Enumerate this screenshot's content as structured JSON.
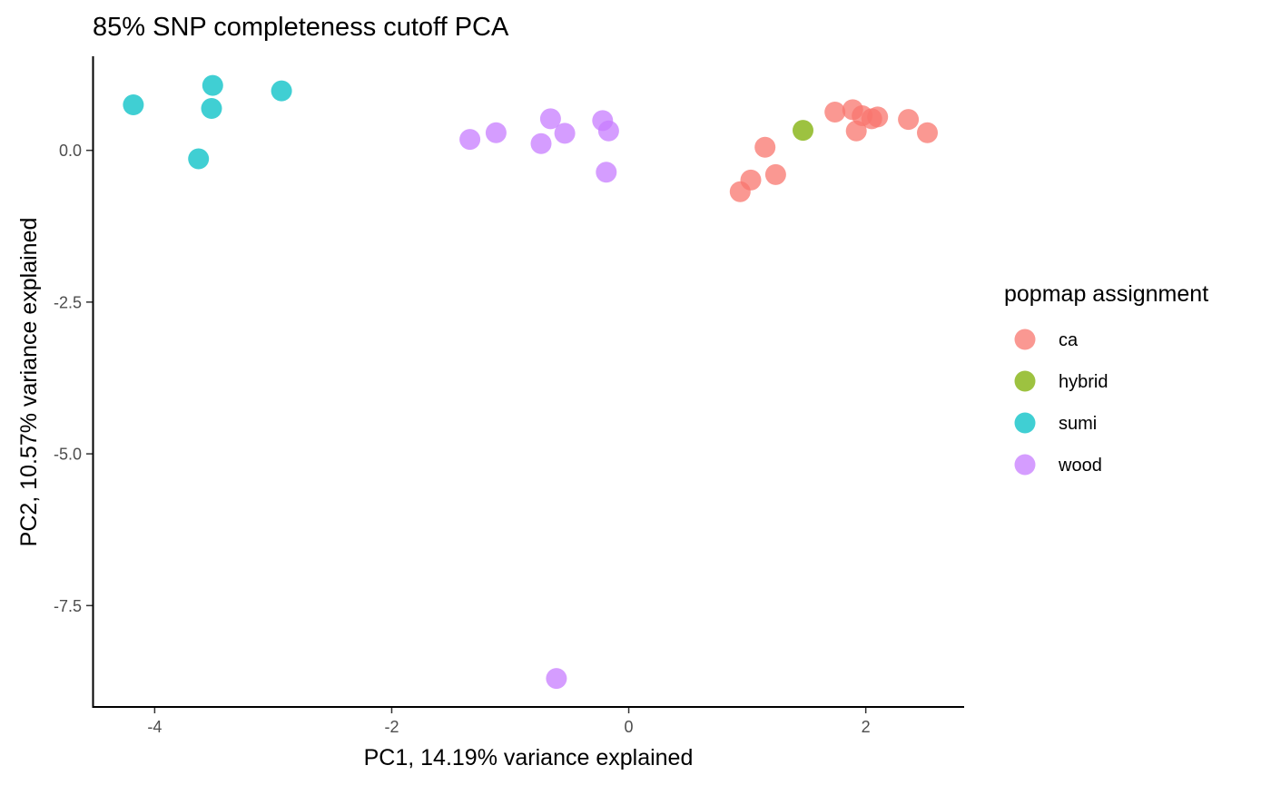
{
  "chart_data": {
    "type": "scatter",
    "title": "85% SNP completeness cutoff PCA",
    "xlabel": "PC1, 14.19% variance explained",
    "ylabel": "PC2, 10.57% variance explained",
    "xlim": [
      -4.52,
      2.83
    ],
    "ylim": [
      -9.17,
      1.55
    ],
    "x_ticks": [
      -4,
      -2,
      0,
      2
    ],
    "y_ticks": [
      0.0,
      -2.5,
      -5.0,
      -7.5
    ],
    "x_tick_labels": [
      "-4",
      "-2",
      "0",
      "2"
    ],
    "y_tick_labels": [
      "0.0",
      "-2.5",
      "-5.0",
      "-7.5"
    ],
    "grid": false,
    "legend": {
      "title": "popmap assignment",
      "placement": "right"
    },
    "series": [
      {
        "name": "ca",
        "color": "#F8766D",
        "points": [
          [
            0.94,
            -0.68
          ],
          [
            1.03,
            -0.49
          ],
          [
            1.24,
            -0.4
          ],
          [
            1.15,
            0.05
          ],
          [
            1.74,
            0.63
          ],
          [
            1.89,
            0.67
          ],
          [
            1.92,
            0.32
          ],
          [
            1.97,
            0.57
          ],
          [
            2.05,
            0.52
          ],
          [
            2.1,
            0.55
          ],
          [
            2.36,
            0.51
          ],
          [
            2.52,
            0.29
          ]
        ]
      },
      {
        "name": "hybrid",
        "color": "#7CAE00",
        "points": [
          [
            1.47,
            0.33
          ]
        ]
      },
      {
        "name": "sumi",
        "color": "#00BFC4",
        "points": [
          [
            -4.18,
            0.75
          ],
          [
            -3.63,
            -0.14
          ],
          [
            -3.51,
            1.07
          ],
          [
            -3.52,
            0.69
          ],
          [
            -2.93,
            0.98
          ]
        ]
      },
      {
        "name": "wood",
        "color": "#C77CFF",
        "points": [
          [
            -1.34,
            0.18
          ],
          [
            -1.12,
            0.29
          ],
          [
            -0.74,
            0.11
          ],
          [
            -0.66,
            0.52
          ],
          [
            -0.54,
            0.28
          ],
          [
            -0.22,
            0.49
          ],
          [
            -0.17,
            0.32
          ],
          [
            -0.19,
            -0.36
          ],
          [
            -0.61,
            -8.7
          ]
        ]
      }
    ]
  }
}
